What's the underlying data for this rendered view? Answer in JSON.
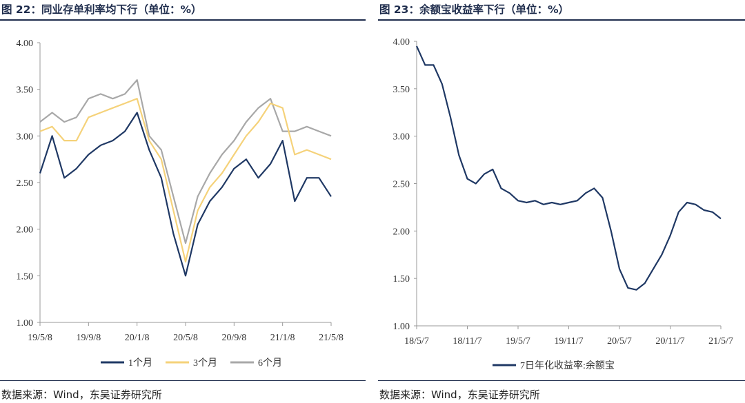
{
  "charts": [
    {
      "title": "图 22：同业存单利率均下行（单位：%）",
      "source": "数据来源：Wind，东吴证券研究所",
      "chart_data": {
        "type": "line",
        "xlabel": "",
        "ylabel": "",
        "ylim": [
          1.0,
          4.0
        ],
        "yticks": [
          "1.00",
          "1.50",
          "2.00",
          "2.50",
          "3.00",
          "3.50",
          "4.00"
        ],
        "xticks": [
          "19/5/8",
          "19/9/8",
          "20/1/8",
          "20/5/8",
          "20/9/8",
          "21/1/8",
          "21/5/8"
        ],
        "grid": false,
        "legend_position": "bottom",
        "x": [
          "19/5/8",
          "19/6/8",
          "19/7/8",
          "19/8/8",
          "19/9/8",
          "19/10/8",
          "19/11/8",
          "19/12/8",
          "20/1/8",
          "20/2/8",
          "20/3/8",
          "20/4/8",
          "20/5/8",
          "20/6/8",
          "20/7/8",
          "20/8/8",
          "20/9/8",
          "20/10/8",
          "20/11/8",
          "20/12/8",
          "21/1/8",
          "21/2/8",
          "21/3/8",
          "21/4/8",
          "21/5/8"
        ],
        "series": [
          {
            "name": "1个月",
            "color": "#1f3864",
            "values": [
              2.6,
              3.0,
              2.55,
              2.65,
              2.8,
              2.9,
              2.95,
              3.05,
              3.25,
              2.85,
              2.55,
              1.95,
              1.5,
              2.05,
              2.3,
              2.45,
              2.65,
              2.75,
              2.55,
              2.7,
              2.95,
              2.3,
              2.55,
              2.55,
              2.35
            ]
          },
          {
            "name": "3个月",
            "color": "#f5d27a",
            "values": [
              3.05,
              3.1,
              2.95,
              2.95,
              3.2,
              3.25,
              3.3,
              3.35,
              3.4,
              2.95,
              2.75,
              2.2,
              1.65,
              2.2,
              2.45,
              2.6,
              2.8,
              3.0,
              3.15,
              3.35,
              3.3,
              2.8,
              2.85,
              2.8,
              2.75
            ]
          },
          {
            "name": "6个月",
            "color": "#a8a8a8",
            "values": [
              3.15,
              3.25,
              3.15,
              3.2,
              3.4,
              3.45,
              3.4,
              3.45,
              3.6,
              3.0,
              2.85,
              2.35,
              1.85,
              2.35,
              2.6,
              2.8,
              2.95,
              3.15,
              3.3,
              3.4,
              3.05,
              3.05,
              3.1,
              3.05,
              3.0
            ]
          }
        ]
      }
    },
    {
      "title": "图 23：余额宝收益率下行（单位：%）",
      "source": "数据来源：Wind，东吴证券研究所",
      "chart_data": {
        "type": "line",
        "xlabel": "",
        "ylabel": "",
        "ylim": [
          1.0,
          4.0
        ],
        "yticks": [
          "1.00",
          "1.50",
          "2.00",
          "2.50",
          "3.00",
          "3.50",
          "4.00"
        ],
        "xticks": [
          "18/5/7",
          "18/11/7",
          "19/5/7",
          "19/11/7",
          "20/5/7",
          "20/11/7",
          "21/5/7"
        ],
        "grid": false,
        "legend_position": "bottom",
        "x": [
          "18/5/7",
          "18/6/7",
          "18/7/7",
          "18/8/7",
          "18/9/7",
          "18/10/7",
          "18/11/7",
          "18/12/7",
          "19/1/7",
          "19/2/7",
          "19/3/7",
          "19/4/7",
          "19/5/7",
          "19/6/7",
          "19/7/7",
          "19/8/7",
          "19/9/7",
          "19/10/7",
          "19/11/7",
          "19/12/7",
          "20/1/7",
          "20/2/7",
          "20/3/7",
          "20/4/7",
          "20/5/7",
          "20/6/7",
          "20/7/7",
          "20/8/7",
          "20/9/7",
          "20/10/7",
          "20/11/7",
          "20/12/7",
          "21/1/7",
          "21/2/7",
          "21/3/7",
          "21/4/7",
          "21/5/7"
        ],
        "series": [
          {
            "name": "7日年化收益率:余额宝",
            "color": "#1f3864",
            "values": [
              3.95,
              3.75,
              3.75,
              3.55,
              3.2,
              2.8,
              2.55,
              2.5,
              2.6,
              2.65,
              2.45,
              2.4,
              2.32,
              2.3,
              2.32,
              2.28,
              2.3,
              2.28,
              2.3,
              2.32,
              2.4,
              2.45,
              2.35,
              2.0,
              1.6,
              1.4,
              1.38,
              1.45,
              1.6,
              1.75,
              1.95,
              2.2,
              2.3,
              2.28,
              2.22,
              2.2,
              2.13
            ]
          }
        ]
      }
    }
  ]
}
